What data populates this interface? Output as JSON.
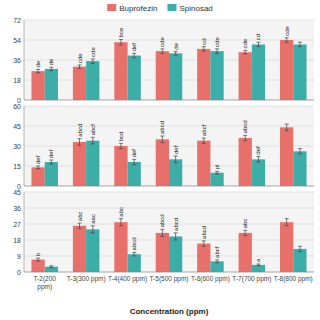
{
  "chart_data": [
    {
      "type": "bar",
      "categories": [
        "T-2(200\nppm)",
        "T-3(300 ppm)",
        "T-4(400 ppm)",
        "T-5(500 ppm)",
        "T-6(600 ppm)",
        "T-7(700 ppm)",
        "T-8(800 ppm)"
      ],
      "series": [
        {
          "name": "Buprofezin",
          "color": "#E8706A",
          "values": [
            26,
            30,
            52,
            44,
            46,
            43,
            54
          ],
          "errors": [
            1.5,
            1.5,
            2.5,
            2.0,
            2.0,
            1.5,
            2.0
          ],
          "annotations": [
            "de",
            "cde",
            "bce",
            "cde",
            "cd",
            "cde",
            "cde"
          ]
        },
        {
          "name": "Spinosad",
          "color": "#3DADA8",
          "values": [
            28,
            35,
            40,
            42,
            44,
            50,
            50
          ],
          "errors": [
            1.5,
            2.0,
            2.0,
            1.5,
            2.0,
            2.0,
            2.0
          ],
          "annotations": [
            "de",
            "cde",
            "def",
            "de",
            "cde",
            "cd",
            null
          ]
        }
      ],
      "ylim": [
        0,
        72
      ],
      "yticks": [
        0,
        18,
        36,
        54,
        72
      ],
      "grid": true,
      "legend": "top",
      "tick_labels": "y"
    },
    {
      "type": "bar",
      "categories": [
        "T-2(200\nppm)",
        "T-3(300 ppm)",
        "T-4(400 ppm)",
        "T-5(500 ppm)",
        "T-6(600 ppm)",
        "T-7(700 ppm)",
        "T-8(800 ppm)"
      ],
      "series": [
        {
          "name": "Buprofezin",
          "color": "#E8706A",
          "values": [
            14,
            33,
            30,
            35,
            34,
            36,
            44
          ],
          "errors": [
            1.0,
            2.5,
            2.0,
            2.5,
            2.0,
            2.0,
            2.5
          ],
          "annotations": [
            "def",
            "abcd",
            "bcd",
            "abcd",
            "abcf",
            "abcd",
            null
          ]
        },
        {
          "name": "Spinosad",
          "color": "#3DADA8",
          "values": [
            18,
            34,
            18,
            20,
            10,
            20,
            26
          ],
          "errors": [
            1.5,
            2.5,
            2.0,
            2.5,
            1.0,
            2.0,
            2.0
          ],
          "annotations": [
            "def",
            "abcf",
            "def",
            "def",
            "pl",
            "def",
            null
          ]
        }
      ],
      "ylim": [
        0,
        60
      ],
      "yticks": [
        0,
        15,
        30,
        45,
        60
      ],
      "grid": true,
      "tick_labels": "y"
    },
    {
      "type": "bar",
      "x_label": "Concentration (ppm)",
      "categories": [
        "T-2(200\nppm)",
        "T-3(300 ppm)",
        "T-4(400 ppm)",
        "T-5(500 ppm)",
        "T-6(600 ppm)",
        "T-7(700 ppm)",
        "T-8(800 ppm)"
      ],
      "series": [
        {
          "name": "Buprofezin",
          "color": "#E8706A",
          "values": [
            7,
            26,
            28,
            22,
            16,
            22,
            28
          ],
          "errors": [
            0.8,
            1.5,
            2.0,
            2.0,
            1.5,
            1.5,
            2.0
          ],
          "annotations": [
            "b",
            "abc",
            "abc",
            "abcd",
            "abcd",
            "abc",
            null
          ]
        },
        {
          "name": "Spinosad",
          "color": "#3DADA8",
          "values": [
            3,
            24,
            10,
            20,
            6,
            4,
            13
          ],
          "errors": [
            0.5,
            2.0,
            1.0,
            2.0,
            0.8,
            0.5,
            1.5
          ],
          "annotations": [
            null,
            "aac",
            "abcd",
            "abcd",
            "abcf",
            "a",
            null
          ]
        }
      ],
      "ylim": [
        0,
        45
      ],
      "yticks": [
        0,
        9,
        18,
        27,
        36,
        45
      ],
      "grid": true
    }
  ]
}
